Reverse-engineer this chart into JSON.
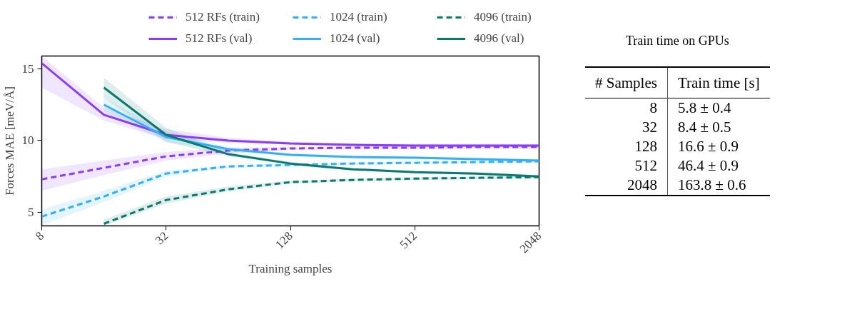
{
  "chart_data": [
    {
      "type": "line",
      "xlabel": "Training samples",
      "ylabel": "Forces MAE [meV/Å]",
      "log": "x",
      "x": [
        8,
        16,
        32,
        64,
        128,
        256,
        512,
        1024,
        2048
      ],
      "xlim": [
        8,
        2048
      ],
      "xticks": [
        8,
        32,
        128,
        512,
        2048
      ],
      "ylim": [
        4.05,
        15.9
      ],
      "yticks": [
        5,
        10,
        15
      ],
      "grid": false,
      "legend": "top",
      "marker": "none",
      "series": [
        {
          "name": "512 RFs (train)",
          "color": "#8b3cf6",
          "line_style": "dashed",
          "values": [
            7.3,
            8.1,
            8.9,
            9.3,
            9.45,
            9.5,
            9.5,
            9.55,
            9.55
          ],
          "lower": [
            6.5,
            7.6,
            8.6,
            9.1,
            9.35,
            9.4,
            9.4,
            9.45,
            9.45
          ],
          "upper": [
            8.0,
            8.6,
            9.2,
            9.5,
            9.55,
            9.6,
            9.6,
            9.65,
            9.65
          ]
        },
        {
          "name": "1024 (train)",
          "color": "#35b0f5",
          "line_style": "dashed",
          "values": [
            4.7,
            6.1,
            7.7,
            8.2,
            8.3,
            8.4,
            8.45,
            8.5,
            8.55
          ],
          "lower": [
            4.1,
            5.7,
            7.5,
            8.1,
            8.2,
            8.3,
            8.35,
            8.4,
            8.45
          ],
          "upper": [
            5.2,
            6.5,
            7.9,
            8.3,
            8.4,
            8.5,
            8.55,
            8.6,
            8.65
          ]
        },
        {
          "name": "4096 (train)",
          "color": "#0b7a6e",
          "line_style": "dashed",
          "values": [
            null,
            4.2,
            5.85,
            6.6,
            7.1,
            7.25,
            7.35,
            7.4,
            7.45
          ],
          "lower": [
            null,
            4.05,
            5.6,
            6.45,
            7.0,
            7.15,
            7.25,
            7.3,
            7.35
          ],
          "upper": [
            null,
            4.5,
            6.1,
            6.8,
            7.2,
            7.35,
            7.45,
            7.5,
            7.55
          ]
        },
        {
          "name": "512 RFs (val)",
          "color": "#8b3cf6",
          "line_style": "solid",
          "values": [
            15.4,
            11.8,
            10.4,
            10.0,
            9.8,
            9.7,
            9.65,
            9.65,
            9.65
          ],
          "lower": [
            13.7,
            11.4,
            10.1,
            9.85,
            9.7,
            9.6,
            9.55,
            9.55,
            9.55
          ],
          "upper": [
            15.9,
            12.3,
            10.8,
            10.2,
            9.9,
            9.8,
            9.75,
            9.75,
            9.75
          ]
        },
        {
          "name": "1024 (val)",
          "color": "#35b0f5",
          "line_style": "solid",
          "values": [
            null,
            12.5,
            10.25,
            9.4,
            9.0,
            8.85,
            8.8,
            8.7,
            8.6
          ],
          "lower": [
            null,
            12.0,
            9.9,
            9.25,
            8.9,
            8.75,
            8.7,
            8.6,
            8.5
          ],
          "upper": [
            null,
            13.0,
            10.6,
            9.55,
            9.1,
            8.95,
            8.9,
            8.8,
            8.7
          ]
        },
        {
          "name": "4096 (val)",
          "color": "#0b7a6e",
          "line_style": "solid",
          "values": [
            null,
            13.7,
            10.4,
            9.05,
            8.4,
            8.0,
            7.8,
            7.7,
            7.5
          ],
          "lower": [
            null,
            13.0,
            9.9,
            8.9,
            8.3,
            7.9,
            7.7,
            7.6,
            7.4
          ],
          "upper": [
            null,
            14.4,
            10.9,
            9.2,
            8.5,
            8.1,
            7.9,
            7.8,
            7.6
          ]
        }
      ]
    },
    {
      "type": "other",
      "title": "Train time on GPUs",
      "annotations": [
        "# Samples",
        "Train time [s]",
        "8",
        "5.8 ± 0.4",
        "32",
        "8.4 ± 0.5",
        "128",
        "16.6 ± 0.9",
        "512",
        "46.4 ± 0.9",
        "2048",
        "163.8 ± 0.6"
      ]
    }
  ]
}
